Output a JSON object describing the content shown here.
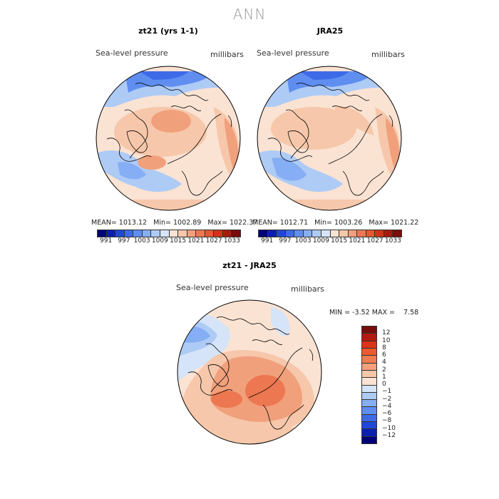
{
  "title": "ANN",
  "colors": {
    "full": [
      "#00007a",
      "#0a1fb0",
      "#1f48d6",
      "#3d6be8",
      "#5f8ef0",
      "#86aef4",
      "#aecbf6",
      "#d5e4f8",
      "#fbe3d3",
      "#f6c7aa",
      "#f1a07c",
      "#ec7750",
      "#e55830",
      "#cf3417",
      "#a71b0e",
      "#780d0c"
    ],
    "diff": [
      "#780d0c",
      "#b31a0f",
      "#d93518",
      "#ec5a2e",
      "#f07b50",
      "#f4a07a",
      "#f7c5a8",
      "#fbe3d3",
      "#d5e4f8",
      "#aecbf6",
      "#86aef4",
      "#5f8ef0",
      "#3d6be8",
      "#1f48d6",
      "#0a1fb0",
      "#00007a"
    ]
  },
  "panels": [
    {
      "title": "zt21 (yrs 1-1)",
      "variable": "Sea-level pressure",
      "units": "millibars",
      "mean_label": "MEAN=",
      "mean": "1013.12",
      "min_label": "Min=",
      "min": "1002.89",
      "max_label": "Max=",
      "max": "1022.37",
      "colorbar_labels": [
        "991",
        "997",
        "1003",
        "1009",
        "1015",
        "1021",
        "1027",
        "1033"
      ]
    },
    {
      "title": "JRA25",
      "variable": "Sea-level pressure",
      "units": "millibars",
      "mean_label": "MEAN=",
      "mean": "1012.71",
      "min_label": "Min=",
      "min": "1003.26",
      "max_label": "Max=",
      "max": "1021.22",
      "colorbar_labels": [
        "991",
        "997",
        "1003",
        "1009",
        "1015",
        "1021",
        "1027",
        "1033"
      ]
    }
  ],
  "diff_panel": {
    "title": "zt21 - JRA25",
    "variable": "Sea-level pressure",
    "units": "millibars",
    "min_label": "MIN =",
    "min": "-3.52",
    "max_label": "MAX =",
    "max": "7.58",
    "colorbar_labels": [
      "12",
      "10",
      "8",
      "6",
      "4",
      "2",
      "1",
      "0",
      "−1",
      "−2",
      "−4",
      "−6",
      "−8",
      "−10",
      "−12"
    ]
  }
}
